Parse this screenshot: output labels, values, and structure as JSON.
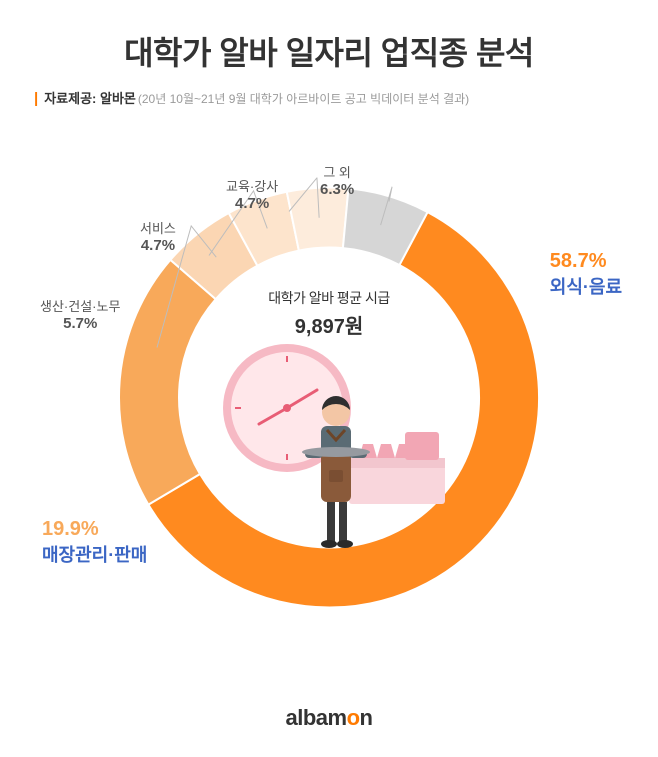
{
  "title": "대학가 알바 일자리 업직종 분석",
  "subtitle": {
    "prefix_bar": "|",
    "label": "자료제공: 알바몬",
    "detail": "(20년 10월~21년 9월 대학가 아르바이트 공고 빅데이터 분석 결과)"
  },
  "chart": {
    "type": "donut",
    "outer_radius": 210,
    "inner_radius": 150,
    "background_color": "#ffffff",
    "start_angle_deg": 28,
    "segments": [
      {
        "name": "외식·음료",
        "value": 58.7,
        "color": "#ff8a1f",
        "label_color": "#3b66c4",
        "pct_color": "#ff8a1f"
      },
      {
        "name": "매장관리·판매",
        "value": 19.9,
        "color": "#f8a95a",
        "label_color": "#3b66c4",
        "pct_color": "#f8a95a"
      },
      {
        "name": "생산·건설·노무",
        "value": 5.7,
        "color": "#fbd6b3",
        "label_color": "#555555",
        "pct_color": "#555555"
      },
      {
        "name": "서비스",
        "value": 4.7,
        "color": "#fde4cc",
        "label_color": "#555555",
        "pct_color": "#555555"
      },
      {
        "name": "교육·강사",
        "value": 4.7,
        "color": "#fdecdc",
        "label_color": "#555555",
        "pct_color": "#555555"
      },
      {
        "name": "그 외",
        "value": 6.3,
        "color": "#d6d6d6",
        "label_color": "#555555",
        "pct_color": "#555555"
      }
    ],
    "center": {
      "line1": "대학가 알바 평균 시급",
      "line2": "9,897원"
    },
    "illustration": {
      "clock_face": "#ffe7ea",
      "clock_rim": "#f6b9c4",
      "clock_hands": "#e85d75",
      "counter": "#f9d6dc",
      "cups": "#f2a6b4",
      "person_apron": "#8a5a3a",
      "person_shirt": "#5a6b74",
      "person_skin": "#f3c6a5",
      "person_hair": "#2f2f2f",
      "tray": "#969aa0"
    }
  },
  "footer": {
    "brand_pre": "albam",
    "brand_o": "o",
    "brand_post": "n"
  }
}
